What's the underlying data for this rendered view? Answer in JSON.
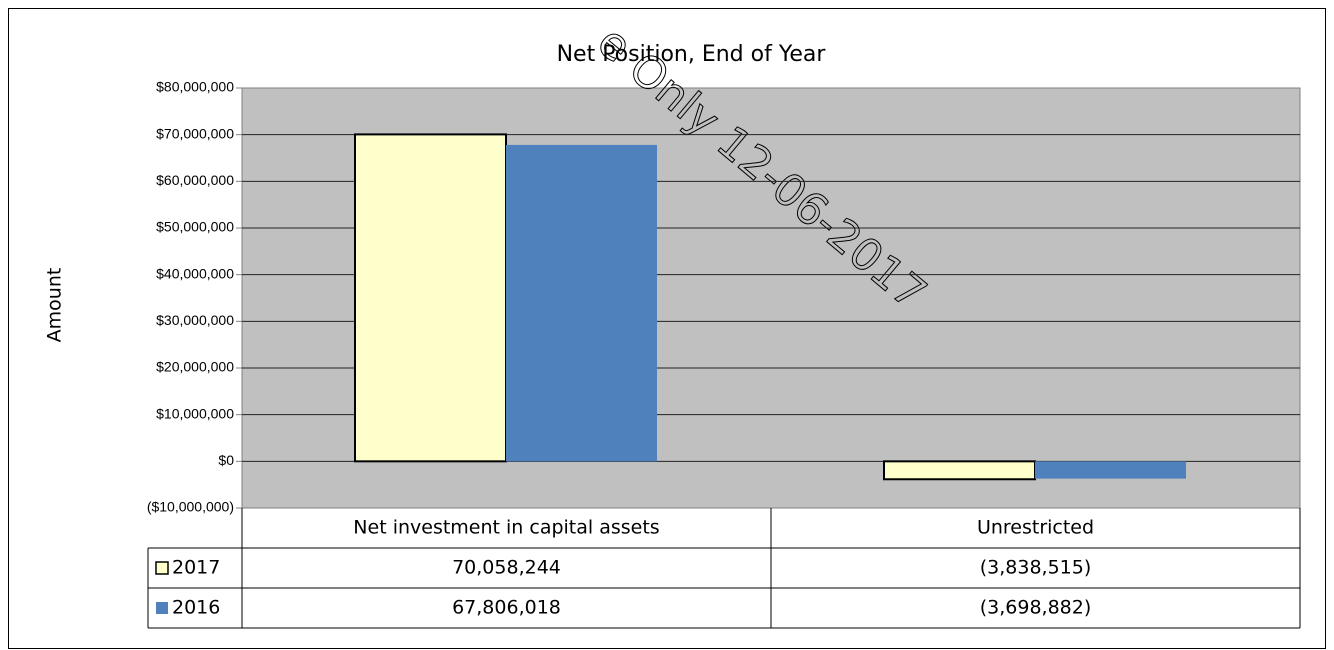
{
  "chart_data": {
    "type": "bar",
    "title": "Net Position, End of Year",
    "ylabel": "Amount",
    "watermark": "e Only 12-06-2017",
    "categories": [
      "Net investment in capital assets",
      "Unrestricted"
    ],
    "series": [
      {
        "name": "2017",
        "color": "#ffffcc",
        "values": [
          70058244,
          -3838515
        ],
        "value_labels": [
          "70,058,244",
          "(3,838,515)"
        ]
      },
      {
        "name": "2016",
        "color": "#4f81bd",
        "values": [
          67806018,
          -3698882
        ],
        "value_labels": [
          "67,806,018",
          "(3,698,882)"
        ]
      }
    ],
    "ylim": [
      -10000000,
      80000000
    ],
    "yticks": [
      {
        "value": -10000000,
        "label": "($10,000,000)"
      },
      {
        "value": 0,
        "label": "$0"
      },
      {
        "value": 10000000,
        "label": "$10,000,000"
      },
      {
        "value": 20000000,
        "label": "$20,000,000"
      },
      {
        "value": 30000000,
        "label": "$30,000,000"
      },
      {
        "value": 40000000,
        "label": "$40,000,000"
      },
      {
        "value": 50000000,
        "label": "$50,000,000"
      },
      {
        "value": 60000000,
        "label": "$60,000,000"
      },
      {
        "value": 70000000,
        "label": "$70,000,000"
      },
      {
        "value": 80000000,
        "label": "$80,000,000"
      }
    ],
    "grid": true
  }
}
